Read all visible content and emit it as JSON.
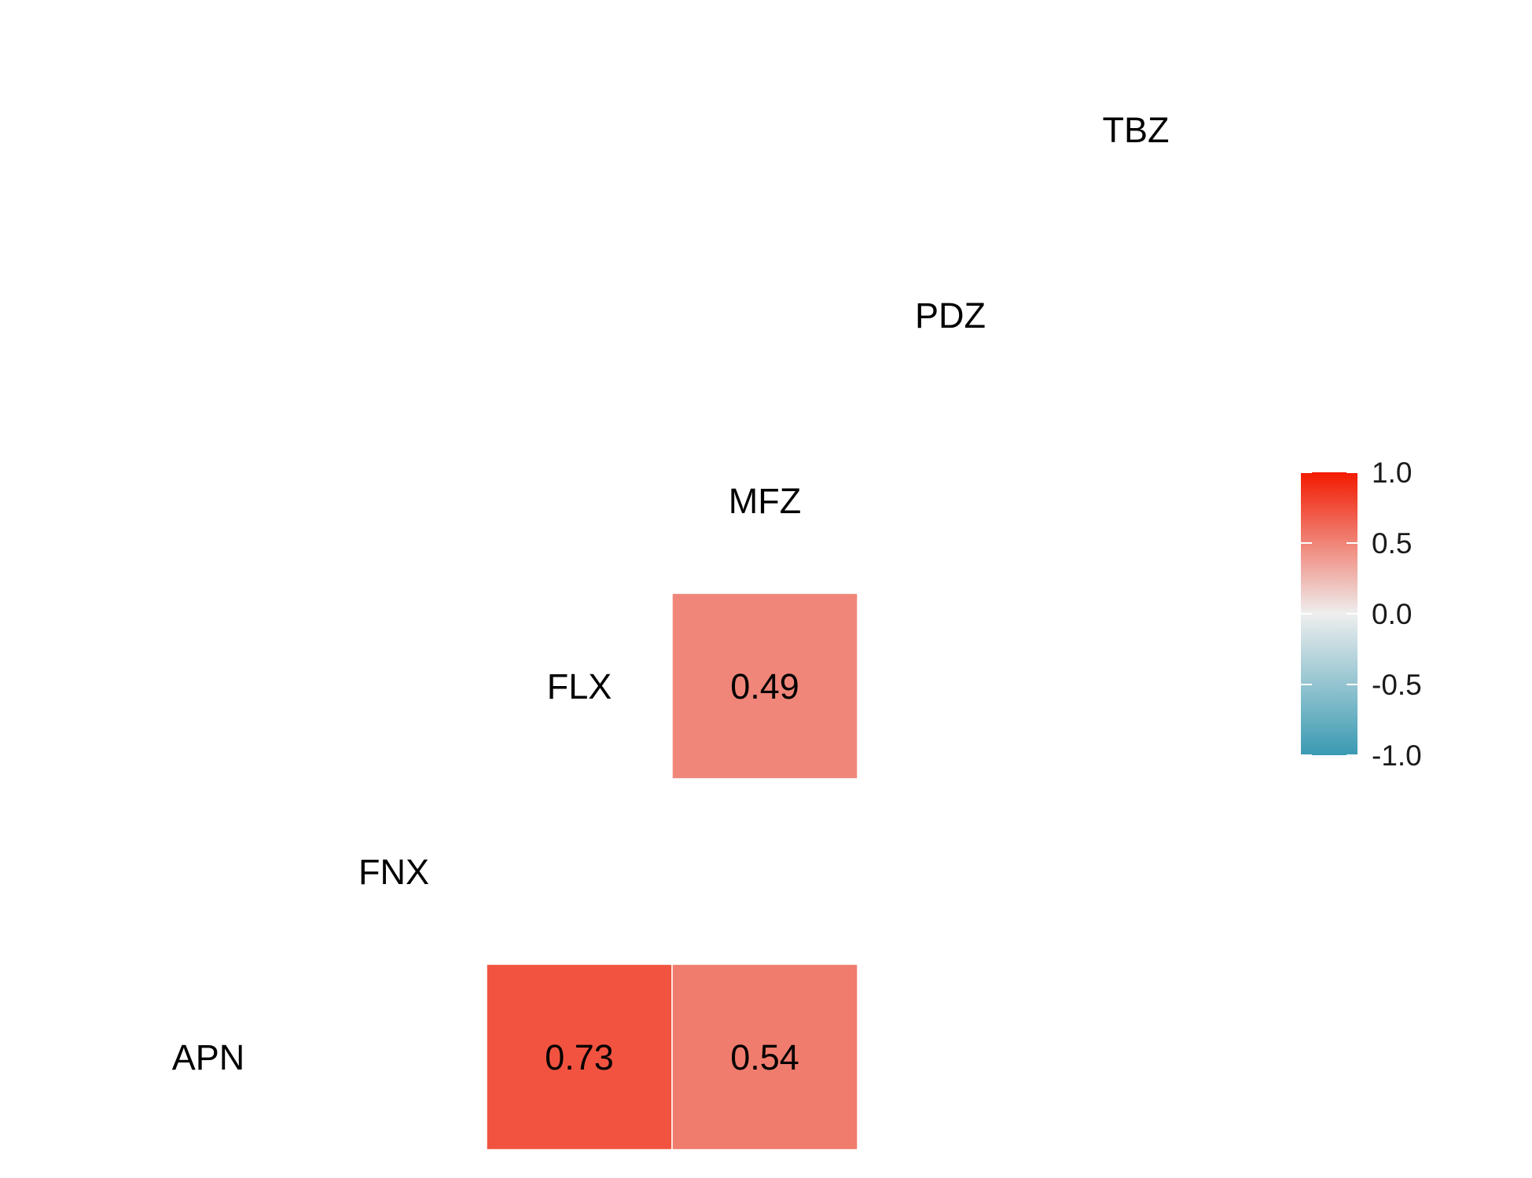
{
  "chart_data": {
    "type": "heatmap",
    "title": "",
    "variables": [
      "APN",
      "FNX",
      "FLX",
      "MFZ",
      "PDZ",
      "TBZ"
    ],
    "cells": [
      {
        "row": "APN",
        "col": "FLX",
        "value": 0.73,
        "label": "0.73"
      },
      {
        "row": "APN",
        "col": "MFZ",
        "value": 0.54,
        "label": "0.54"
      },
      {
        "row": "FLX",
        "col": "MFZ",
        "value": 0.49,
        "label": "0.49"
      }
    ],
    "color_scale": {
      "low": "#3A9AB2",
      "mid": "#EEEEEE",
      "high": "#F21A00",
      "limits": [
        -1.0,
        1.0
      ]
    },
    "legend": {
      "placement": "right",
      "ticks": [
        {
          "value": 1.0,
          "label": "1.0"
        },
        {
          "value": 0.5,
          "label": "0.5"
        },
        {
          "value": 0.0,
          "label": "0.0"
        },
        {
          "value": -0.5,
          "label": "-0.5"
        },
        {
          "value": -1.0,
          "label": "-1.0"
        }
      ]
    }
  }
}
